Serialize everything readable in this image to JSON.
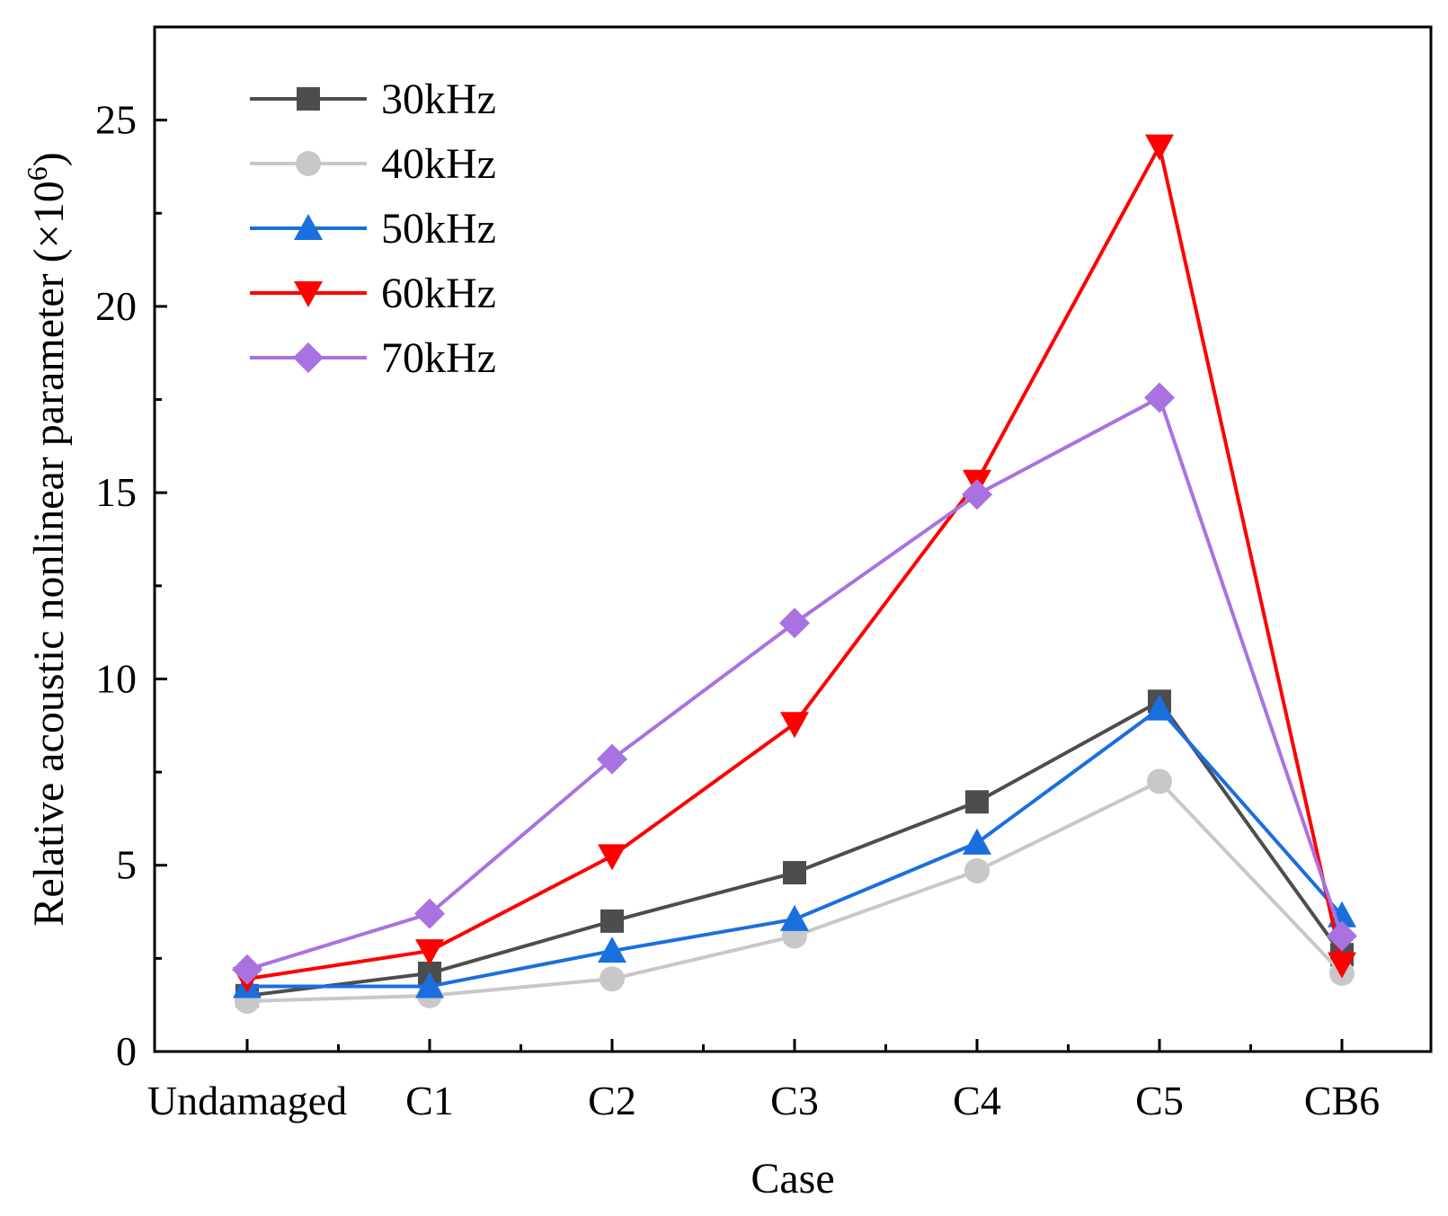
{
  "chart_data": {
    "type": "line",
    "title": "",
    "xlabel": "Case",
    "ylabel": "Relative acoustic nonlinear parameter (×10",
    "ylabel_superscript": "6",
    "ylabel_suffix": ")",
    "ylim": [
      0,
      27.5
    ],
    "yticks": [
      "0",
      "5",
      "10",
      "15",
      "20",
      "25"
    ],
    "categories": [
      "Undamaged",
      "C1",
      "C2",
      "C3",
      "C4",
      "C5",
      "CB6"
    ],
    "legend_position": "top-left",
    "grid": false,
    "series": [
      {
        "name": "30kHz",
        "color": "#4d4d4d",
        "marker": "square",
        "values": [
          1.5,
          2.1,
          3.5,
          4.8,
          6.7,
          9.4,
          2.6
        ]
      },
      {
        "name": "40kHz",
        "color": "#c8c8c8",
        "marker": "circle",
        "values": [
          1.35,
          1.5,
          1.95,
          3.1,
          4.85,
          7.25,
          2.1
        ]
      },
      {
        "name": "50kHz",
        "color": "#1a6fdf",
        "marker": "triangle-up",
        "values": [
          1.75,
          1.75,
          2.7,
          3.55,
          5.6,
          9.2,
          3.65
        ]
      },
      {
        "name": "60kHz",
        "color": "#ff0000",
        "marker": "triangle-down",
        "values": [
          1.95,
          2.7,
          5.25,
          8.8,
          15.3,
          24.3,
          2.35
        ]
      },
      {
        "name": "70kHz",
        "color": "#a972e0",
        "marker": "diamond",
        "values": [
          2.2,
          3.7,
          7.85,
          11.5,
          14.95,
          17.55,
          3.1
        ]
      }
    ]
  }
}
